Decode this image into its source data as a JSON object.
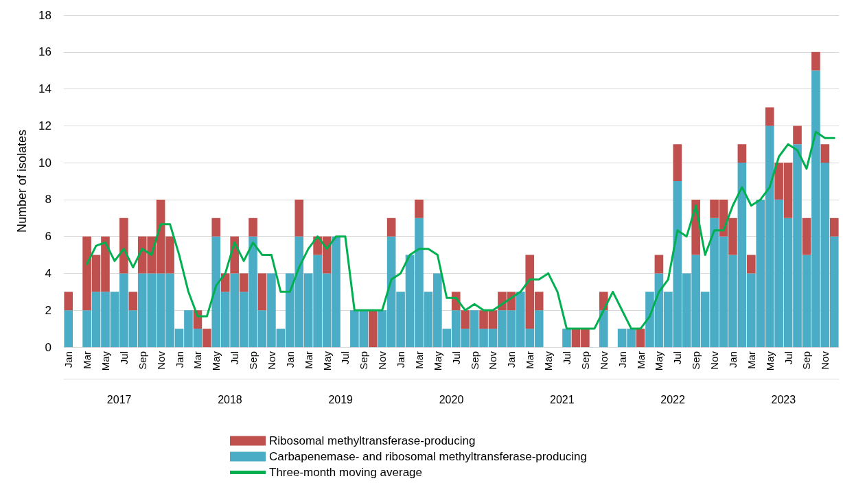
{
  "chart_data": {
    "type": "bar",
    "stacked": true,
    "ylabel": "Number of isolates",
    "ylim": [
      0,
      18
    ],
    "yticks": [
      0,
      2,
      4,
      6,
      8,
      10,
      12,
      14,
      16,
      18
    ],
    "grid": "y",
    "legend": "bottom",
    "marker": "none",
    "categories": [
      "Jan",
      null,
      "Mar",
      null,
      "May",
      null,
      "Jul",
      null,
      "Sep",
      null,
      "Nov",
      null,
      "Jan",
      null,
      "Mar",
      null,
      "May",
      null,
      "Jul",
      null,
      "Sep",
      null,
      "Nov",
      null,
      "Jan",
      null,
      "Mar",
      null,
      "May",
      null,
      "Jul",
      null,
      "Sep",
      null,
      "Nov",
      null,
      "Jan",
      null,
      "Mar",
      null,
      "May",
      null,
      "Jul",
      null,
      "Sep",
      null,
      "Nov",
      null,
      "Jan",
      null,
      "Mar",
      null,
      "May",
      null,
      "Jul",
      null,
      "Sep",
      null,
      "Nov",
      null,
      "Jan",
      null,
      "Mar",
      null,
      "May",
      null,
      "Jul",
      null,
      "Sep",
      null,
      "Nov",
      null,
      "Jan",
      null,
      "Mar",
      null,
      "May",
      null,
      "Jul",
      null,
      "Sep",
      null,
      "Nov",
      null
    ],
    "annotations": [
      "2017",
      "2018",
      "2019",
      "2020",
      "2021",
      "2022",
      "2023"
    ],
    "series": [
      {
        "name": "Carbapenemase- and ribosomal methyltransferase-producing",
        "color": "#4bacc6",
        "values": [
          2,
          0,
          2,
          3,
          3,
          3,
          4,
          2,
          4,
          4,
          4,
          4,
          1,
          2,
          1,
          0,
          6,
          3,
          4,
          3,
          6,
          2,
          4,
          1,
          4,
          6,
          4,
          5,
          4,
          6,
          0,
          2,
          2,
          0,
          2,
          6,
          3,
          5,
          7,
          3,
          4,
          1,
          2,
          1,
          2,
          1,
          1,
          2,
          2,
          3,
          1,
          2,
          0,
          0,
          1,
          0,
          0,
          0,
          2,
          0,
          1,
          1,
          0,
          3,
          4,
          3,
          9,
          4,
          5,
          3,
          7,
          6,
          5,
          10,
          4,
          8,
          12,
          8,
          7,
          11,
          5,
          15,
          10,
          6
        ]
      },
      {
        "name": "Ribosomal methyltransferase-producing",
        "color": "#c0504d",
        "values": [
          1,
          0,
          4,
          2,
          3,
          0,
          3,
          1,
          2,
          2,
          4,
          2,
          0,
          0,
          1,
          1,
          1,
          1,
          2,
          1,
          1,
          2,
          0,
          0,
          0,
          2,
          0,
          1,
          2,
          0,
          0,
          0,
          0,
          2,
          0,
          1,
          0,
          0,
          1,
          0,
          0,
          0,
          1,
          1,
          0,
          1,
          1,
          1,
          1,
          0,
          4,
          1,
          0,
          0,
          0,
          1,
          1,
          0,
          1,
          0,
          0,
          0,
          1,
          0,
          1,
          0,
          2,
          0,
          3,
          0,
          1,
          2,
          2,
          1,
          1,
          0,
          1,
          2,
          3,
          1,
          2,
          1,
          1,
          1
        ]
      },
      {
        "name": "Three-month moving average",
        "type": "line",
        "color": "#00b050",
        "values": [
          null,
          null,
          4.5,
          5.5,
          5.67,
          4.67,
          5.33,
          4.33,
          5.33,
          5,
          6.67,
          6.67,
          5,
          3,
          1.67,
          1.67,
          3.33,
          4,
          5.67,
          4.67,
          5.67,
          5,
          5,
          3,
          3,
          4.33,
          5.33,
          6,
          5.33,
          6,
          6,
          2,
          2,
          2,
          2,
          3.67,
          4,
          5,
          5.33,
          5.33,
          5,
          2.67,
          2.67,
          2,
          2.33,
          2,
          2,
          2.33,
          2.67,
          3,
          3.67,
          3.67,
          4,
          3,
          1,
          1,
          1,
          1,
          2,
          3,
          2,
          1,
          1,
          1.67,
          3,
          3.67,
          6.33,
          6,
          7.67,
          5,
          6.33,
          6.33,
          7.67,
          8.67,
          7.67,
          8,
          8.67,
          10.33,
          11,
          10.67,
          9.67,
          11.67,
          11.33,
          11.33
        ]
      }
    ]
  }
}
